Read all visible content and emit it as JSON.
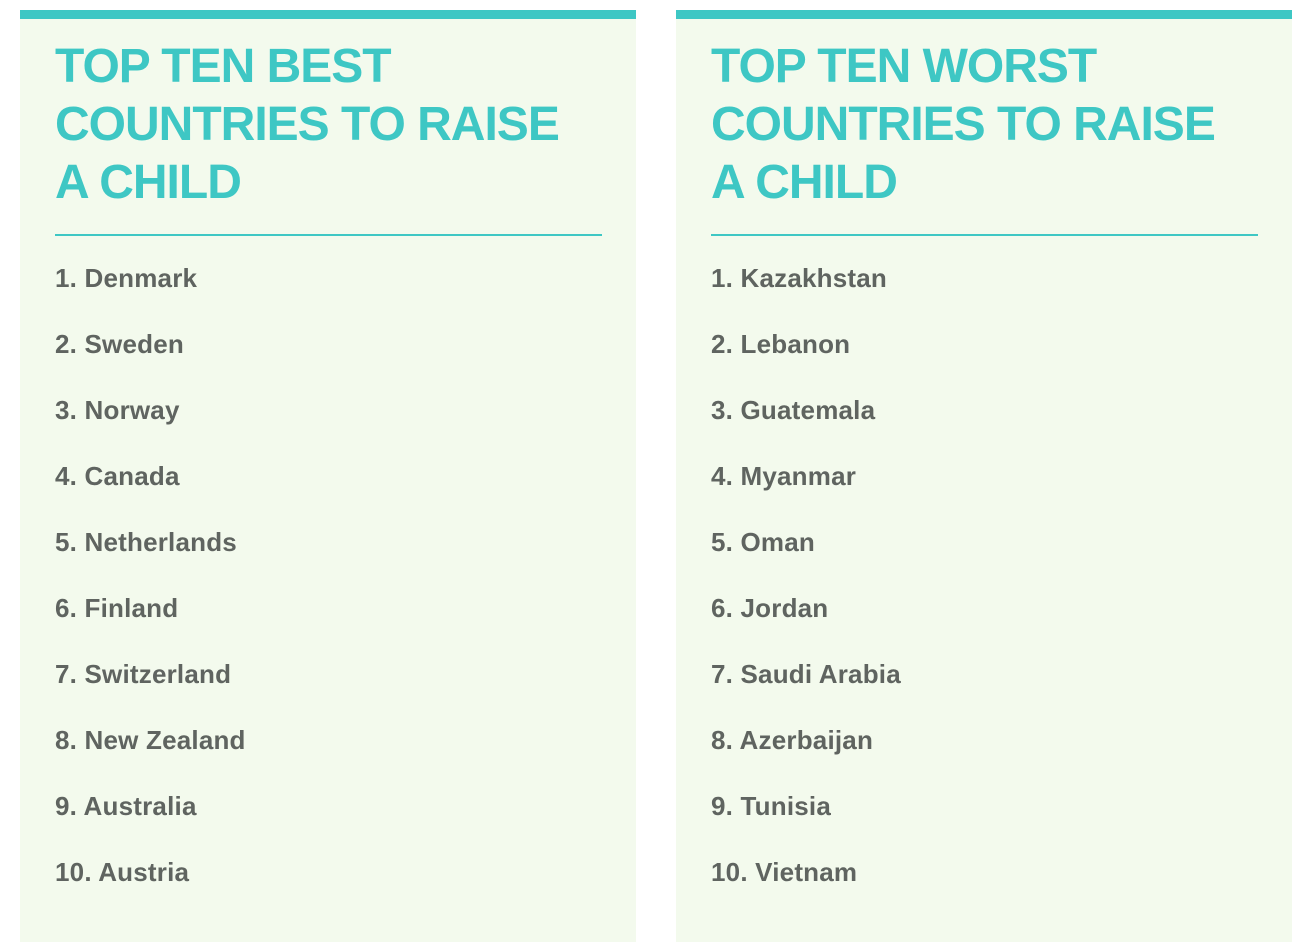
{
  "theme": {
    "accent_teal": "#3EC7C4",
    "card_background": "#F3FAED",
    "list_text_color": "#5F6460",
    "page_background": "#FFFFFF"
  },
  "cards": [
    {
      "id": "best",
      "title": "TOP TEN BEST COUNTRIES TO RAISE A CHILD",
      "title_lines": [
        "TOP TEN BEST",
        "COUNTRIES TO RAISE",
        "A CHILD"
      ],
      "items": [
        {
          "rank": "1",
          "country": "Denmark"
        },
        {
          "rank": "2",
          "country": "Sweden"
        },
        {
          "rank": "3",
          "country": "Norway"
        },
        {
          "rank": "4",
          "country": "Canada"
        },
        {
          "rank": "5",
          "country": "Netherlands"
        },
        {
          "rank": "6",
          "country": "Finland"
        },
        {
          "rank": "7",
          "country": "Switzerland"
        },
        {
          "rank": "8",
          "country": "New Zealand"
        },
        {
          "rank": "9",
          "country": "Australia"
        },
        {
          "rank": "10",
          "country": "Austria"
        }
      ]
    },
    {
      "id": "worst",
      "title": "TOP TEN WORST COUNTRIES TO RAISE A CHILD",
      "title_lines": [
        "TOP TEN WORST",
        "COUNTRIES TO RAISE",
        "A CHILD"
      ],
      "items": [
        {
          "rank": "1",
          "country": "Kazakhstan"
        },
        {
          "rank": "2",
          "country": "Lebanon"
        },
        {
          "rank": "3",
          "country": "Guatemala"
        },
        {
          "rank": "4",
          "country": "Myanmar"
        },
        {
          "rank": "5",
          "country": "Oman"
        },
        {
          "rank": "6",
          "country": "Jordan"
        },
        {
          "rank": "7",
          "country": "Saudi Arabia"
        },
        {
          "rank": "8",
          "country": "Azerbaijan"
        },
        {
          "rank": "9",
          "country": "Tunisia"
        },
        {
          "rank": "10",
          "country": "Vietnam"
        }
      ]
    }
  ]
}
